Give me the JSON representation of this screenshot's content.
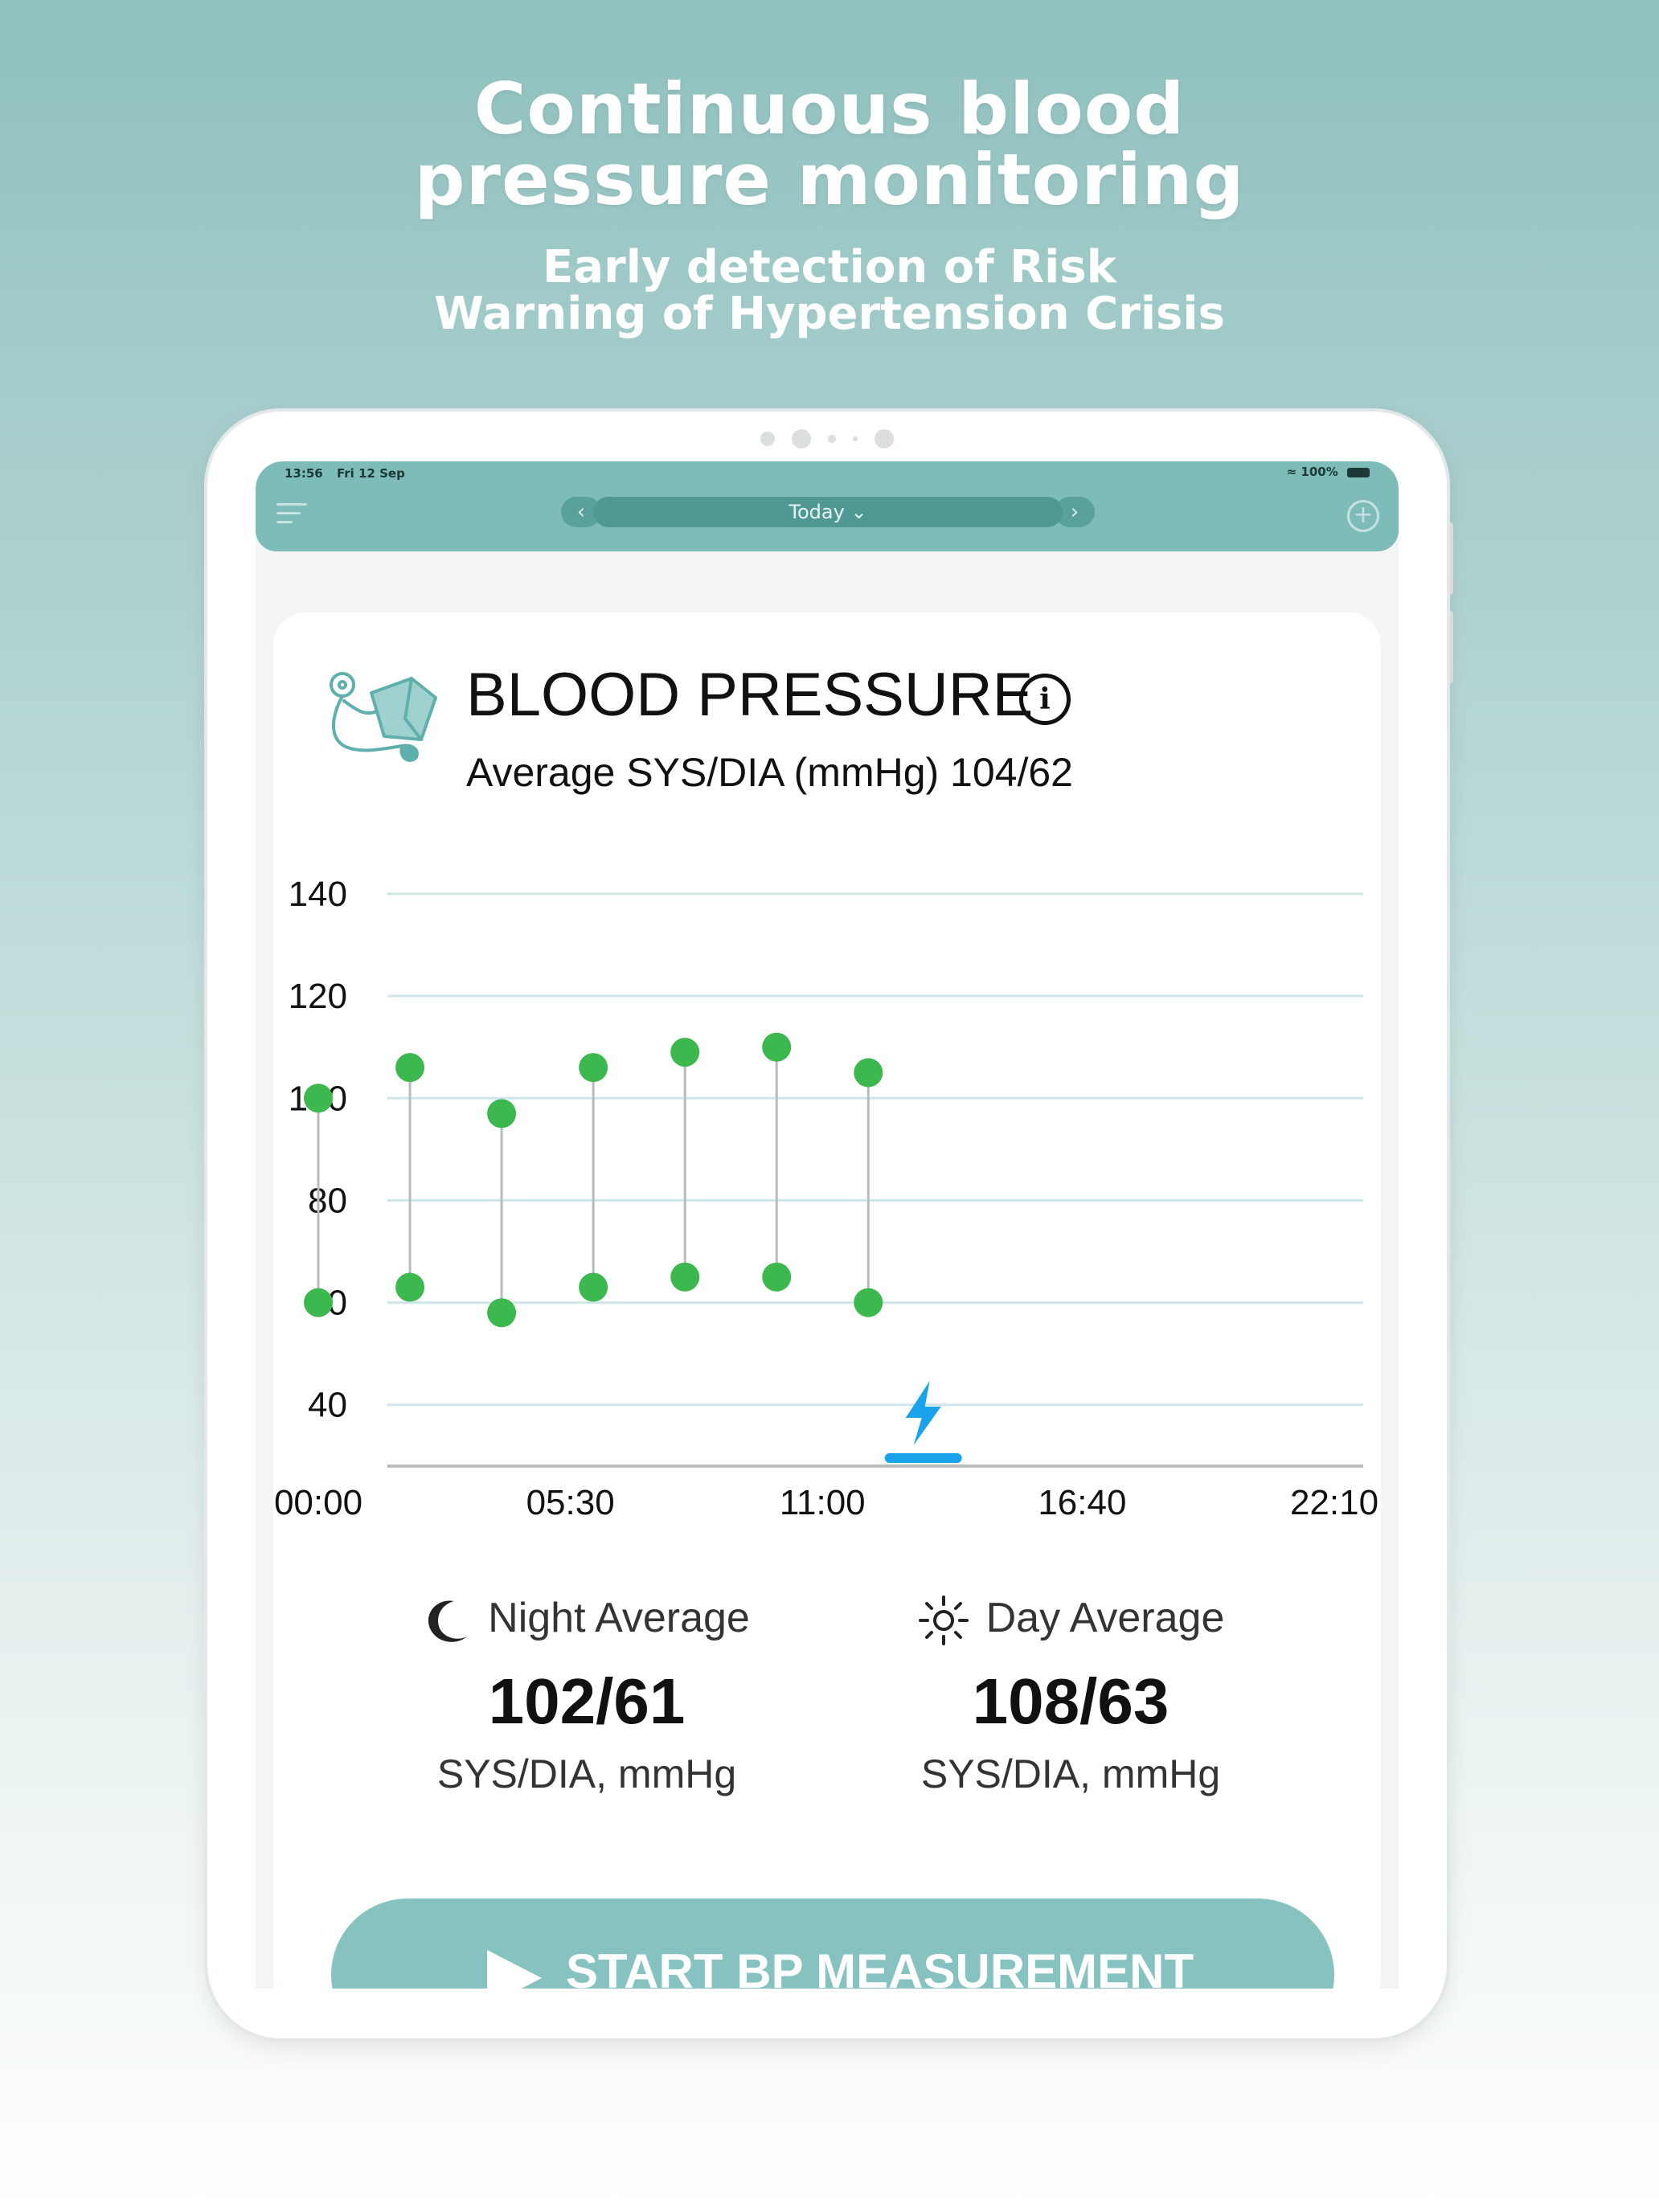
{
  "promo": {
    "headline_line1": "Continuous blood",
    "headline_line2": "pressure monitoring",
    "subline_line1": "Early detection of Risk",
    "subline_line2": "Warning of Hypertension Crisis"
  },
  "status_bar": {
    "time": "13:56",
    "date": "Fri 12 Sep",
    "battery": "100%"
  },
  "app_bar": {
    "date_selector": "Today",
    "prev_icon": "chevron-left-icon",
    "next_icon": "chevron-right-icon"
  },
  "card": {
    "title": "BLOOD PRESSURE",
    "average_label": "Average SYS/DIA (mmHg) 104/62",
    "icon": "blood-pressure-cuff-icon"
  },
  "chart_data": {
    "type": "scatter",
    "title": "",
    "xlabel": "",
    "ylabel": "",
    "y_ticks": [
      140,
      120,
      100,
      80,
      60,
      40
    ],
    "x_ticks": [
      "00:00",
      "05:30",
      "11:00",
      "16:40",
      "22:10"
    ],
    "ylim": [
      28,
      140
    ],
    "series": [
      {
        "name": "SYS",
        "values": [
          100,
          106,
          97,
          106,
          109,
          110,
          105
        ]
      },
      {
        "name": "DIA",
        "values": [
          60,
          63,
          58,
          63,
          65,
          65,
          60
        ]
      }
    ],
    "x_hours": [
      0,
      2,
      4,
      6,
      8,
      10,
      12
    ],
    "event_marker": {
      "type": "lightning",
      "hour": 13.2
    },
    "point_color": "#3db84f",
    "event_color": "#1aa3ea"
  },
  "night": {
    "label": "Night Average",
    "value": "102/61",
    "unit": "SYS/DIA, mmHg"
  },
  "day": {
    "label": "Day Average",
    "value": "108/63",
    "unit": "SYS/DIA, mmHg"
  },
  "action": {
    "start_label": "START BP MEASUREMENT"
  },
  "colors": {
    "accent": "#7dbcb8",
    "button": "#86c2bf"
  }
}
